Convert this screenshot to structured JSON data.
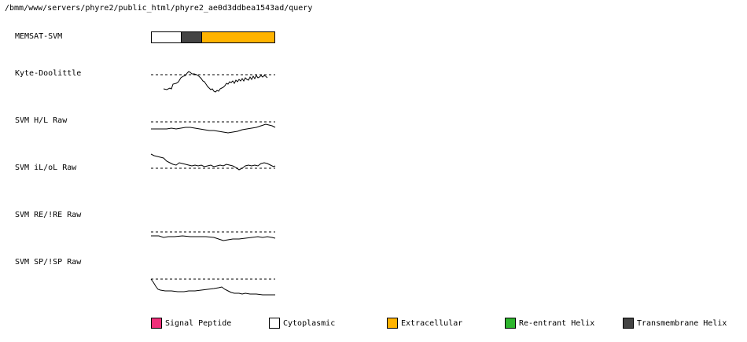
{
  "path_title": "/bmm/www/servers/phyre2/public_html/phyre2_ae0d3ddbea1543ad/query",
  "rows": {
    "memsat": "MEMSAT-SVM",
    "kyte": "Kyte-Doolittle",
    "svm_hl": "SVM H/L Raw",
    "svm_ilol": "SVM iL/oL Raw",
    "svm_re": "SVM RE/!RE Raw",
    "svm_sp": "SVM SP/!SP Raw"
  },
  "topology": [
    {
      "type": "Cytoplasmic",
      "fraction": 0.24,
      "color": "#ffffff"
    },
    {
      "type": "Transmembrane Helix",
      "fraction": 0.16,
      "color": "#444444"
    },
    {
      "type": "Extracellular",
      "fraction": 0.6,
      "color": "#ffb300"
    }
  ],
  "legend": [
    {
      "label": "Signal Peptide",
      "color": "#f0307a"
    },
    {
      "label": "Cytoplasmic",
      "color": "#ffffff"
    },
    {
      "label": "Extracellular",
      "color": "#ffb300"
    },
    {
      "label": "Re-entrant Helix",
      "color": "#2db52d"
    },
    {
      "label": "Transmembrane Helix",
      "color": "#444444"
    }
  ]
}
